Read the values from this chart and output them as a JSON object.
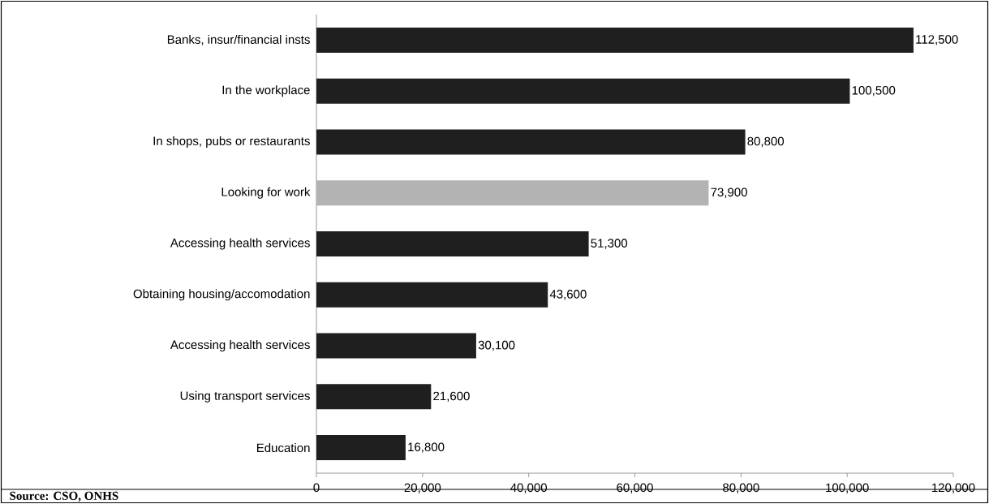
{
  "chart_data": {
    "type": "bar",
    "orientation": "horizontal",
    "categories": [
      "Banks, insur/financial insts",
      "In the workplace",
      "In shops, pubs or restaurants",
      "Looking for work",
      "Accessing health services",
      "Obtaining housing/accomodation",
      "Accessing health services",
      "Using transport services",
      "Education"
    ],
    "values": [
      112500,
      100500,
      80800,
      73900,
      51300,
      43600,
      30100,
      21600,
      16800
    ],
    "value_labels": [
      "112,500",
      "100,500",
      "80,800",
      "73,900",
      "51,300",
      "43,600",
      "30,100",
      "21,600",
      "16,800"
    ],
    "colors": [
      "#1f1f1f",
      "#1f1f1f",
      "#1f1f1f",
      "#b3b3b3",
      "#1f1f1f",
      "#1f1f1f",
      "#1f1f1f",
      "#1f1f1f",
      "#1f1f1f"
    ],
    "xlim": [
      0,
      120000
    ],
    "xticks": [
      0,
      {
        "value": 20000,
        "label": "20,000"
      },
      {
        "value": 40000,
        "label": "40,000"
      },
      {
        "value": 60000,
        "label": "60,000"
      },
      {
        "value": 80000,
        "label": "80,000"
      },
      {
        "value": 100000,
        "label": "100,000"
      },
      {
        "value": 120000,
        "label": "120,000"
      }
    ],
    "annotations": [
      "Source: CSO, ONHS"
    ]
  }
}
